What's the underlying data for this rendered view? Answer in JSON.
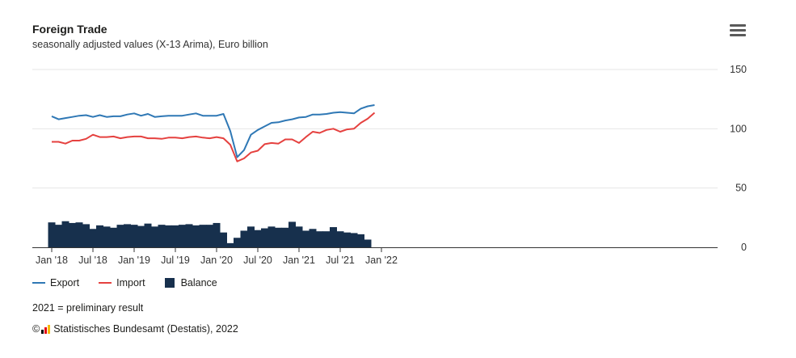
{
  "header": {
    "title": "Foreign Trade",
    "subtitle": "seasonally adjusted values (X-13 Arima), Euro billion"
  },
  "legend": {
    "export_label": "Export",
    "import_label": "Import",
    "balance_label": "Balance"
  },
  "note": "2021 = preliminary result",
  "source": {
    "copyright": "©",
    "text": "Statistisches Bundesamt (Destatis), 2022"
  },
  "colors": {
    "export": "#2f78b5",
    "import": "#e5413f",
    "balance": "#17304d",
    "grid": "#e6e6e6",
    "axis": "#333333"
  },
  "chart_data": {
    "type": "line",
    "x": [
      "2018-01",
      "2018-02",
      "2018-03",
      "2018-04",
      "2018-05",
      "2018-06",
      "2018-07",
      "2018-08",
      "2018-09",
      "2018-10",
      "2018-11",
      "2018-12",
      "2019-01",
      "2019-02",
      "2019-03",
      "2019-04",
      "2019-05",
      "2019-06",
      "2019-07",
      "2019-08",
      "2019-09",
      "2019-10",
      "2019-11",
      "2019-12",
      "2020-01",
      "2020-02",
      "2020-03",
      "2020-04",
      "2020-05",
      "2020-06",
      "2020-07",
      "2020-08",
      "2020-09",
      "2020-10",
      "2020-11",
      "2020-12",
      "2021-01",
      "2021-02",
      "2021-03",
      "2021-04",
      "2021-05",
      "2021-06",
      "2021-07",
      "2021-08",
      "2021-09",
      "2021-10",
      "2021-11",
      "2021-12"
    ],
    "x_ticks": [
      "Jan '18",
      "Jul '18",
      "Jan '19",
      "Jul '19",
      "Jan '20",
      "Jul '20",
      "Jan '21",
      "Jul '21",
      "Jan '22"
    ],
    "y_ticks": [
      0,
      50,
      100,
      150
    ],
    "ylim": [
      0,
      150
    ],
    "grid": true,
    "legend_position": "bottom-left",
    "series": [
      {
        "name": "Export",
        "type": "line",
        "color": "#2f78b5",
        "values": [
          110.5,
          108,
          109,
          110,
          111,
          111.5,
          110,
          111.5,
          110,
          110.5,
          110.5,
          112,
          113,
          111,
          112.5,
          110,
          110.5,
          111,
          111,
          111,
          112,
          113,
          111,
          111,
          111,
          112.5,
          98,
          76,
          82,
          95,
          99,
          102,
          105,
          105.5,
          107,
          108,
          109.5,
          110,
          112,
          112,
          112.5,
          113.5,
          114,
          113.5,
          113,
          117,
          119,
          120
        ]
      },
      {
        "name": "Import",
        "type": "line",
        "color": "#e5413f",
        "values": [
          89,
          89,
          87.5,
          90,
          90,
          91.5,
          95,
          93,
          93,
          93.5,
          92,
          93,
          93.5,
          93.5,
          92,
          92,
          91.5,
          92.5,
          92.5,
          92,
          93,
          93.5,
          92.5,
          92,
          93,
          92,
          86.5,
          72.5,
          75,
          80,
          81.5,
          87,
          88,
          87.5,
          91,
          91,
          88,
          93,
          97.5,
          96.5,
          99,
          100,
          97.5,
          99.5,
          100,
          105,
          108.5,
          113.5
        ]
      },
      {
        "name": "Balance",
        "type": "bar",
        "color": "#17304d",
        "values": [
          21,
          19,
          22,
          20.5,
          21,
          19.5,
          15.5,
          18.5,
          17.5,
          16.5,
          19,
          19.5,
          19,
          18,
          20,
          17.5,
          19,
          18.5,
          18.5,
          19,
          19.5,
          18.5,
          19,
          19,
          20.5,
          12.5,
          3.5,
          8,
          14,
          17.5,
          14.5,
          16,
          17.5,
          16.5,
          16.5,
          21.5,
          17.5,
          14,
          15.5,
          13.5,
          13.5,
          17,
          13.5,
          12.5,
          12,
          11,
          6.5,
          0
        ]
      }
    ]
  }
}
